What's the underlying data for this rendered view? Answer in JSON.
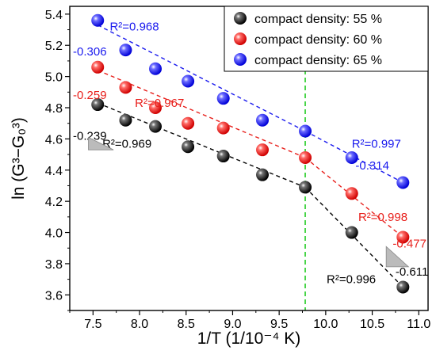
{
  "chart_data": {
    "type": "scatter",
    "xlabel": "1/T (1/10⁻⁴ K)",
    "ylabel": "ln (G³−G₀³)",
    "xlim": [
      7.25,
      11.1
    ],
    "ylim": [
      3.5,
      5.45
    ],
    "x_ticks": [
      "7.5",
      "8.0",
      "8.5",
      "9.0",
      "9.5",
      "10.0",
      "10.5",
      "11.0"
    ],
    "y_ticks": [
      "3.6",
      "3.8",
      "4.0",
      "4.2",
      "4.4",
      "4.6",
      "4.8",
      "5.0",
      "5.2",
      "5.4"
    ],
    "grid": false,
    "legend_position": "top-right",
    "vertical_reference_line": {
      "x": 9.78,
      "color": "#22cc22",
      "style": "dashed"
    },
    "series": [
      {
        "name": "compact density: 55 %",
        "color": "#000000",
        "x": [
          7.55,
          7.85,
          8.17,
          8.52,
          8.9,
          9.32,
          9.78,
          10.28,
          10.83
        ],
        "y": [
          4.82,
          4.72,
          4.68,
          4.55,
          4.49,
          4.37,
          4.29,
          4.0,
          3.65
        ],
        "fits": [
          {
            "x": [
              7.55,
              9.78
            ],
            "y": [
              4.83,
              4.29
            ],
            "r2": "R²=0.969",
            "slope": "-0.239"
          },
          {
            "x": [
              9.78,
              10.83
            ],
            "y": [
              4.29,
              3.65
            ],
            "r2": "R²=0.996",
            "slope": "-0.611"
          }
        ]
      },
      {
        "name": "compact density: 60 %",
        "color": "#e8201c",
        "x": [
          7.55,
          7.85,
          8.17,
          8.52,
          8.9,
          9.32,
          9.78,
          10.28,
          10.83
        ],
        "y": [
          5.06,
          4.93,
          4.8,
          4.7,
          4.67,
          4.53,
          4.48,
          4.25,
          3.97
        ],
        "fits": [
          {
            "x": [
              7.55,
              9.78
            ],
            "y": [
              5.04,
              4.48
            ],
            "r2": "R²=0.967",
            "slope": "-0.259"
          },
          {
            "x": [
              9.78,
              10.83
            ],
            "y": [
              4.48,
              3.97
            ],
            "r2": "R²=0.998",
            "slope": "-0.477"
          }
        ]
      },
      {
        "name": "compact density: 65 %",
        "color": "#1a1aee",
        "x": [
          7.55,
          7.85,
          8.17,
          8.52,
          8.9,
          9.32,
          9.78,
          10.28,
          10.83
        ],
        "y": [
          5.36,
          5.17,
          5.05,
          4.97,
          4.86,
          4.72,
          4.65,
          4.48,
          4.32
        ],
        "fits": [
          {
            "x": [
              7.55,
              9.78
            ],
            "y": [
              5.33,
              4.65
            ],
            "r2": "R²=0.968",
            "slope": "-0.306"
          },
          {
            "x": [
              9.78,
              10.83
            ],
            "y": [
              4.65,
              4.32
            ],
            "r2": "R²=0.997",
            "slope": "-0.314"
          }
        ]
      }
    ]
  }
}
